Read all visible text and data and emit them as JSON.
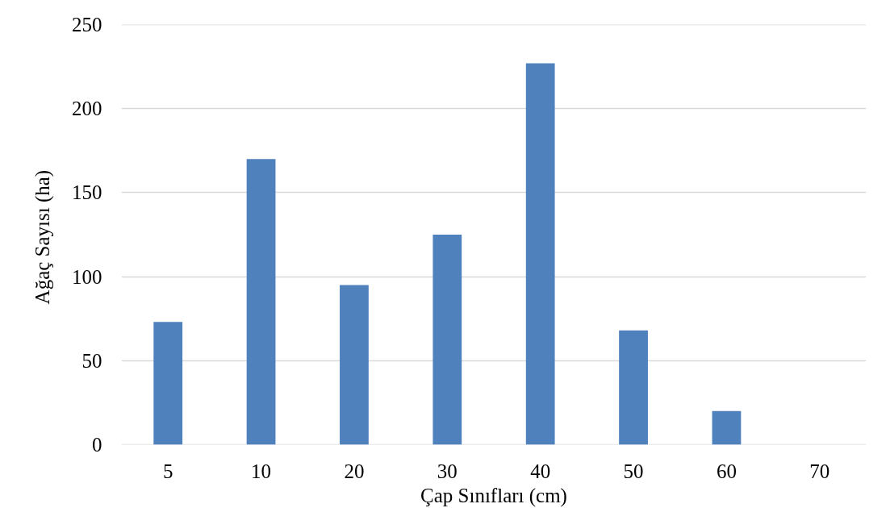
{
  "chart_data": {
    "type": "bar",
    "xlabel": "Çap Sınıfları (cm)",
    "ylabel": "Ağaç  Sayısı (ha)",
    "categories": [
      "5",
      "10",
      "20",
      "30",
      "40",
      "50",
      "60",
      "70"
    ],
    "values": [
      73,
      170,
      95,
      125,
      227,
      68,
      20,
      0
    ],
    "color": "#4f81bd",
    "ylim": [
      0,
      250
    ],
    "yticks": [
      0,
      50,
      100,
      150,
      200,
      250
    ],
    "grid": "y"
  }
}
